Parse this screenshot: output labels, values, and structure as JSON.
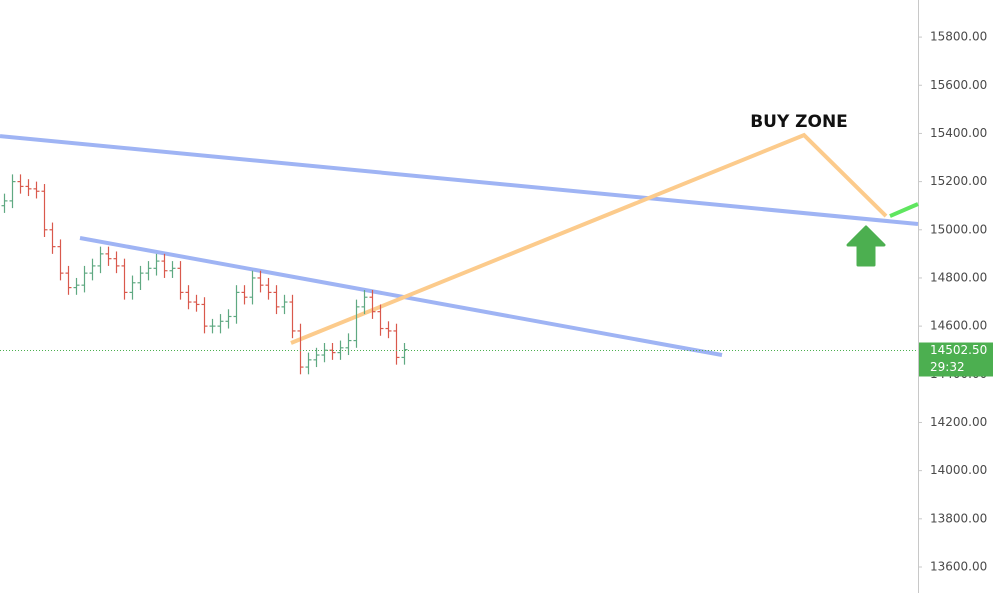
{
  "chart_data": {
    "type": "candlestick",
    "open": [
      15100,
      15120,
      15200,
      15180,
      15170,
      15160,
      15000,
      14930,
      14820,
      14760,
      14770,
      14820,
      14850,
      14900,
      14880,
      14850,
      14740,
      14780,
      14820,
      14840,
      14870,
      14830,
      14840,
      14740,
      14700,
      14690,
      14600,
      14600,
      14620,
      14640,
      14740,
      14720,
      14800,
      14770,
      14740,
      14680,
      14700,
      14580,
      14430,
      14460,
      14480,
      14500,
      14490,
      14510,
      14540,
      14680,
      14720,
      14660,
      14590,
      14580,
      14470
    ],
    "high": [
      15150,
      15230,
      15230,
      15210,
      15200,
      15190,
      15030,
      14960,
      14850,
      14800,
      14850,
      14880,
      14930,
      14930,
      14910,
      14880,
      14810,
      14850,
      14870,
      14900,
      14900,
      14870,
      14870,
      14770,
      14730,
      14720,
      14630,
      14650,
      14670,
      14770,
      14770,
      14830,
      14830,
      14800,
      14770,
      14730,
      14730,
      14610,
      14490,
      14510,
      14530,
      14530,
      14540,
      14570,
      14710,
      14750,
      14750,
      14690,
      14620,
      14610,
      14530
    ],
    "low": [
      15070,
      15090,
      15150,
      15140,
      15130,
      14970,
      14900,
      14790,
      14730,
      14730,
      14740,
      14790,
      14820,
      14850,
      14820,
      14710,
      14710,
      14750,
      14790,
      14810,
      14800,
      14800,
      14710,
      14670,
      14660,
      14570,
      14570,
      14570,
      14590,
      14610,
      14690,
      14690,
      14740,
      14710,
      14650,
      14650,
      14550,
      14400,
      14400,
      14430,
      14450,
      14460,
      14460,
      14480,
      14510,
      14650,
      14630,
      14560,
      14550,
      14440,
      14440
    ],
    "close": [
      15120,
      15200,
      15180,
      15170,
      15160,
      15000,
      14930,
      14820,
      14760,
      14770,
      14820,
      14850,
      14900,
      14880,
      14850,
      14740,
      14780,
      14820,
      14840,
      14870,
      14830,
      14840,
      14740,
      14700,
      14690,
      14600,
      14600,
      14620,
      14640,
      14740,
      14720,
      14800,
      14770,
      14740,
      14680,
      14700,
      14580,
      14430,
      14460,
      14480,
      14500,
      14490,
      14510,
      14540,
      14680,
      14720,
      14660,
      14590,
      14580,
      14470,
      14502.5
    ],
    "up_color": "#5fa982",
    "down_color": "#d9594c",
    "xlim": [
      -0.5,
      114.25
    ],
    "ylim": [
      13492,
      15954
    ],
    "yticks": [
      {
        "value": 13600,
        "label": "13600.00"
      },
      {
        "value": 13800,
        "label": "13800.00"
      },
      {
        "value": 14000,
        "label": "14000.00"
      },
      {
        "value": 14200,
        "label": "14200.00"
      },
      {
        "value": 14400,
        "label": "14400.00"
      },
      {
        "value": 14600,
        "label": "14600.00"
      },
      {
        "value": 14800,
        "label": "14800.00"
      },
      {
        "value": 15000,
        "label": "15000.00"
      },
      {
        "value": 15200,
        "label": "15200.00"
      },
      {
        "value": 15400,
        "label": "15400.00"
      },
      {
        "value": 15600,
        "label": "15600.00"
      },
      {
        "value": 15800,
        "label": "15800.00"
      }
    ],
    "last_price": {
      "value": 14502.5,
      "label": "14502.50"
    },
    "countdown": "29:32",
    "last_price_color": "#4caf50",
    "drawings": [
      {
        "color": "#9fb4f4",
        "x": [
          -0.5,
          114.25
        ],
        "y": [
          15389,
          15024
        ]
      },
      {
        "color": "#9fb4f4",
        "x": [
          9.5,
          89.75
        ],
        "y": [
          14966,
          14480
        ]
      },
      {
        "color": "#fccb8c",
        "x": [
          35.875,
          100,
          110.25
        ],
        "y": [
          14530,
          15393,
          15057
        ]
      },
      {
        "color": "#5fe65f",
        "x": [
          110.75,
          114.25
        ],
        "y": [
          15057,
          15107
        ]
      }
    ],
    "annotation": "BUY ZONE"
  }
}
